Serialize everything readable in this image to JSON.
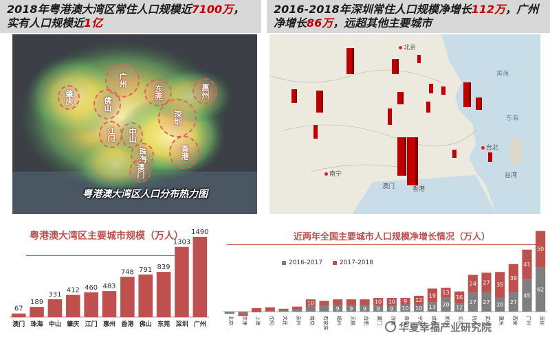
{
  "left_panel": {
    "title_parts": [
      "2018年粤港澳大湾区常住人口规模近",
      "7100万",
      "，实有人口规模近",
      "1亿"
    ],
    "caption": "粤港澳大湾区人口分布热力图",
    "cities": [
      "广州",
      "佛山",
      "东莞",
      "惠州",
      "肇庆",
      "深圳",
      "江门",
      "中山",
      "珠海",
      "澳门",
      "香港"
    ]
  },
  "right_panel": {
    "title_parts": [
      "2016-2018年深圳常住人口规模净增长",
      "112万",
      "，广州",
      "净增长",
      "86万",
      "，远超其他主要城市"
    ],
    "map_labels": [
      "北京",
      "东海",
      "黄海",
      "台湾",
      "南宁",
      "澳门",
      "香港",
      "台北"
    ]
  },
  "chart_data": [
    {
      "type": "bar",
      "title": "粤港澳大湾区主要城市规模（万人）",
      "categories": [
        "澳门",
        "珠海",
        "中山",
        "肇庆",
        "江门",
        "惠州",
        "香港",
        "佛山",
        "东莞",
        "深圳",
        "广州"
      ],
      "values": [
        67,
        189,
        331,
        412,
        460,
        483,
        748,
        791,
        839,
        1303,
        1490
      ],
      "color": "#c0504d"
    },
    {
      "type": "bar",
      "stacked": true,
      "title": "近两年全国主要城市人口规模净增长情况（万人）",
      "categories": [
        "北京",
        "天津",
        "上海",
        "沈阳",
        "大连",
        "苏州",
        "南京",
        "石家庄",
        "福州",
        "无锡",
        "合肥",
        "厦门",
        "济南",
        "青岛",
        "宁波",
        "成都",
        "郑州",
        "长沙",
        "杭州",
        "武汉",
        "重庆",
        "西安",
        "广州",
        "深圳"
      ],
      "series": [
        {
          "name": "2016-2017",
          "values": [
            -2,
            -3,
            -1,
            1,
            2,
            3,
            7,
            8,
            9,
            9,
            9,
            9,
            9,
            10,
            10,
            13,
            20,
            12,
            27,
            27,
            20,
            27,
            45,
            62
          ],
          "color": "#7f7f7f"
        },
        {
          "name": "2017-2018",
          "values": [
            -1,
            -3,
            5,
            5,
            2,
            4,
            10,
            7,
            8,
            8,
            8,
            10,
            10,
            9,
            12,
            19,
            13,
            16,
            24,
            27,
            35,
            39,
            41,
            50
          ],
          "color": "#c0504d"
        }
      ]
    }
  ],
  "watermark": "华夏幸福产业研究院"
}
